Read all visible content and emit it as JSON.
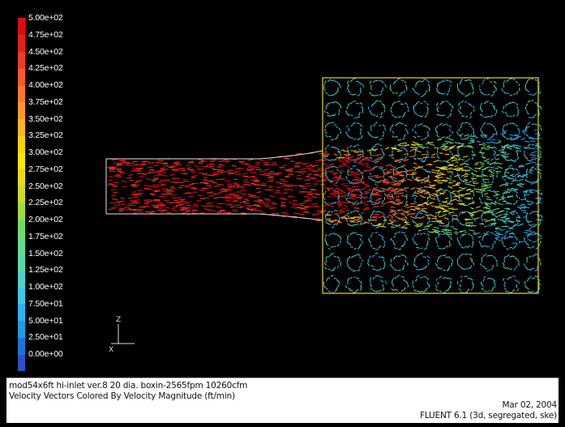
{
  "legend": {
    "colors": [
      "#2f50c8",
      "#1e72dc",
      "#1e9ae6",
      "#28b4f0",
      "#3cc8e6",
      "#4ed2c8",
      "#5ad7aa",
      "#64dc8c",
      "#6edc64",
      "#a0dc3c",
      "#c8dc28",
      "#e6dc14",
      "#fae600",
      "#ffd200",
      "#ffb41e",
      "#ff9628",
      "#ff7828",
      "#fa5a28",
      "#f03c28",
      "#e61e1e",
      "#dc0a14"
    ],
    "labels": [
      "0.00e+00",
      "2.50e+01",
      "5.00e+01",
      "7.50e+01",
      "1.00e+02",
      "1.25e+02",
      "1.50e+02",
      "1.75e+02",
      "2.00e+02",
      "2.25e+02",
      "2.50e+02",
      "2.75e+02",
      "3.00e+02",
      "3.25e+02",
      "3.50e+02",
      "3.75e+02",
      "4.00e+02",
      "4.25e+02",
      "4.50e+02",
      "4.75e+02",
      "5.00e+02"
    ]
  },
  "axes": {
    "z_label": "Z",
    "x_label": "X"
  },
  "status": {
    "case_name": "mod54x6ft hi-inlet ver.8 20 dia. boxin-2565fpm 10260cfm",
    "plot_description": "Velocity Vectors Colored By Velocity Magnitude (ft/min)",
    "date": "Mar 02, 2004",
    "solver": "FLUENT 6.1 (3d, segregated, ske)"
  },
  "colors": {
    "background": "#000000",
    "duct_outline": "#e8e8e8",
    "chamber_outline": "#e6dc14"
  }
}
